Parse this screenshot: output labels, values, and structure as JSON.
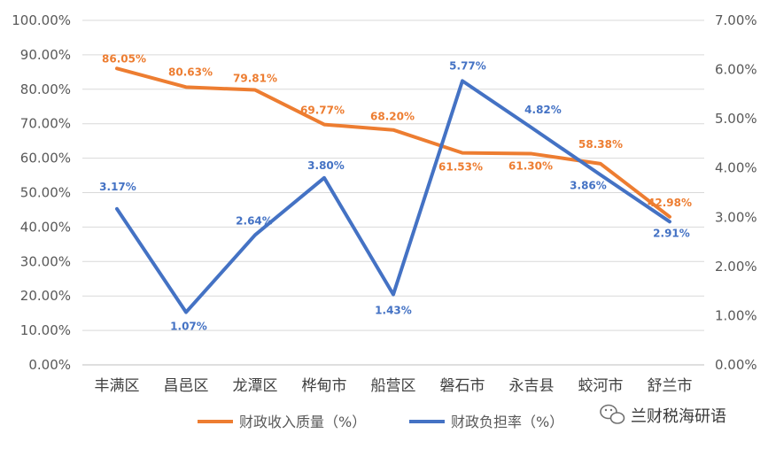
{
  "chart_data": {
    "type": "line",
    "categories": [
      "丰满区",
      "昌邑区",
      "龙潭区",
      "桦甸市",
      "船营区",
      "磐石市",
      "永吉县",
      "蛟河市",
      "舒兰市"
    ],
    "y_left": {
      "ylim": [
        0,
        100
      ],
      "ticks": [
        "0.00%",
        "10.00%",
        "20.00%",
        "30.00%",
        "40.00%",
        "50.00%",
        "60.00%",
        "70.00%",
        "80.00%",
        "90.00%",
        "100.00%"
      ]
    },
    "y_right": {
      "ylim": [
        0,
        7
      ],
      "ticks": [
        "0.00%",
        "1.00%",
        "2.00%",
        "3.00%",
        "4.00%",
        "5.00%",
        "6.00%",
        "7.00%"
      ]
    },
    "grid": true,
    "legend_position": "bottom",
    "series": [
      {
        "name": "财政收入质量（%）",
        "axis": "left",
        "color": "#ED7D31",
        "values": [
          86.05,
          80.63,
          79.81,
          69.77,
          68.2,
          61.53,
          61.3,
          58.38,
          42.98
        ],
        "labels": [
          "86.05%",
          "80.63%",
          "79.81%",
          "69.77%",
          "68.20%",
          "61.53%",
          "61.30%",
          "58.38%",
          "42.98%"
        ]
      },
      {
        "name": "财政负担率（%）",
        "axis": "right",
        "color": "#4472C4",
        "values": [
          3.17,
          1.07,
          2.64,
          3.8,
          1.43,
          5.77,
          4.82,
          3.86,
          2.91
        ],
        "labels": [
          "3.17%",
          "1.07%",
          "2.64%",
          "3.80%",
          "1.43%",
          "5.77%",
          "4.82%",
          "3.86%",
          "2.91%"
        ]
      }
    ]
  },
  "watermark": {
    "icon": "wechat-icon",
    "text": "兰财税海研语"
  }
}
